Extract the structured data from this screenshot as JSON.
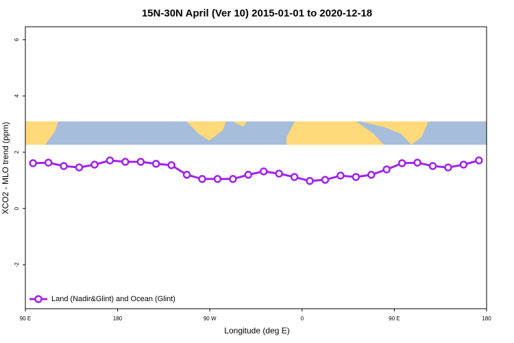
{
  "chart_data": {
    "type": "line",
    "title": "15N-30N April (Ver 10)   2015-01-01 to 2020-12-18",
    "x_label": "Longitude (deg E)",
    "y_label": "XCO2 - MLO trend (ppm)",
    "x": [
      97.5,
      112.5,
      127.5,
      142.5,
      157.5,
      172.5,
      187.5,
      202.5,
      217.5,
      232.5,
      247.5,
      262.5,
      277.5,
      292.5,
      307.5,
      322.5,
      337.5,
      352.5,
      367.5,
      382.5,
      397.5,
      412.5,
      427.5,
      442.5,
      457.5,
      472.5,
      487.5,
      502.5,
      517.5,
      532.5
    ],
    "series": [
      {
        "name": "Land (Nadir&Glint) and Ocean (Glint)",
        "color": "#a020f0",
        "values": [
          1.61,
          1.63,
          1.51,
          1.46,
          1.56,
          1.71,
          1.66,
          1.66,
          1.59,
          1.54,
          1.2,
          1.05,
          1.05,
          1.05,
          1.2,
          1.32,
          1.24,
          1.12,
          0.98,
          1.02,
          1.17,
          1.12,
          1.2,
          1.39,
          1.61,
          1.63,
          1.51,
          1.46,
          1.56,
          1.71
        ]
      }
    ],
    "xlim": [
      90,
      540
    ],
    "xticks": [
      {
        "value": 90,
        "label": "90 E"
      },
      180,
      {
        "value": 270,
        "label": "90 W"
      },
      {
        "value": 360,
        "label": "0"
      },
      {
        "value": 450,
        "label": "90 E"
      },
      {
        "value": 540,
        "label": "180"
      }
    ],
    "ylim": [
      -3.56,
      6.46
    ],
    "yticks": [
      -2,
      0,
      2,
      4,
      6
    ],
    "legend": "bottom-left"
  }
}
